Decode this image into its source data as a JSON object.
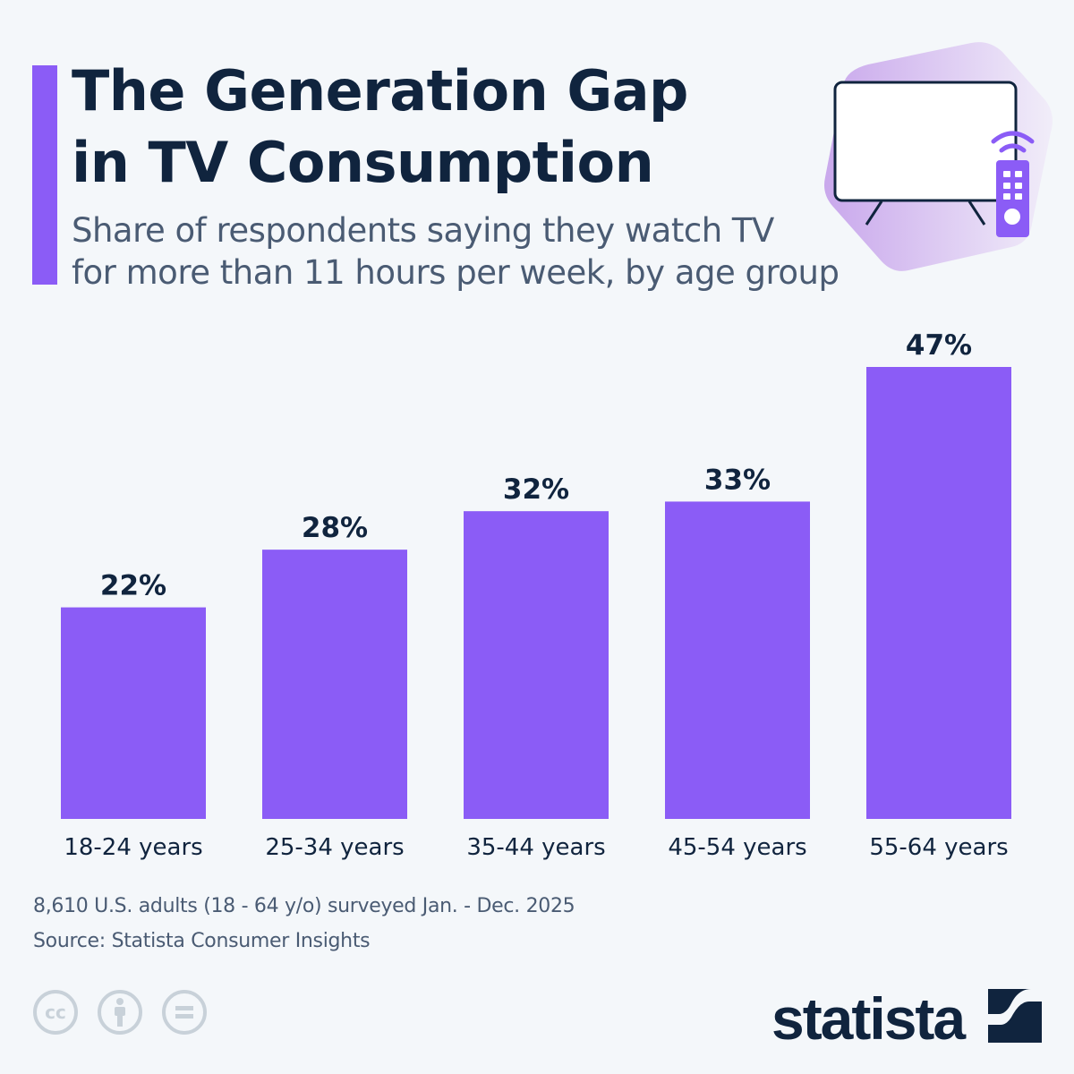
{
  "header": {
    "title_line1": "The Generation Gap",
    "title_line2": "in TV Consumption",
    "subtitle_line1": "Share of respondents saying they watch TV",
    "subtitle_line2": "for more than 11 hours per week, by age group"
  },
  "colors": {
    "accent": "#8b5cf6",
    "text": "#10243e",
    "muted": "#4a5b73",
    "background": "#f4f7fa"
  },
  "icons": [
    "tv-icon",
    "remote-control-icon",
    "cc-icon",
    "attribution-icon",
    "no-derivatives-icon",
    "statista-logo"
  ],
  "chart_data": {
    "type": "bar",
    "title": "The Generation Gap in TV Consumption",
    "categories": [
      "18-24 years",
      "25-34 years",
      "35-44 years",
      "45-54 years",
      "55-64 years"
    ],
    "values": [
      22,
      28,
      32,
      33,
      47
    ],
    "data_labels": [
      "22%",
      "28%",
      "32%",
      "33%",
      "47%"
    ],
    "unit": "%",
    "ylim": [
      0,
      47
    ],
    "grid": false,
    "legend": "none",
    "bar_color": "#8b5cf6"
  },
  "footer": {
    "note": "8,610 U.S. adults (18 - 64 y/o) surveyed Jan. - Dec. 2025",
    "source": "Source: Statista Consumer Insights",
    "logo_text": "statista"
  }
}
